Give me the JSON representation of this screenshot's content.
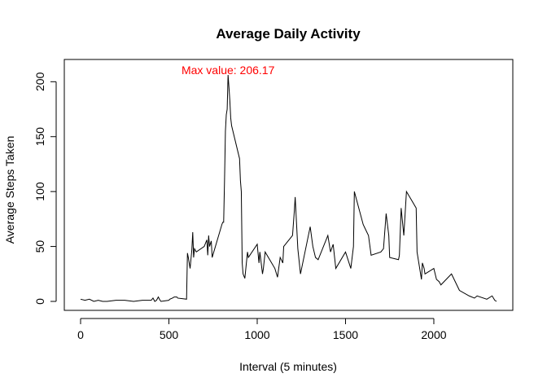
{
  "chart_data": {
    "type": "line",
    "title": "Average Daily Activity",
    "xlabel": "Interval (5 minutes)",
    "ylabel": "Average Steps Taken",
    "xlim": [
      0,
      2355
    ],
    "ylim": [
      0,
      206.17
    ],
    "xticks": [
      0,
      500,
      1000,
      1500,
      2000
    ],
    "yticks": [
      0,
      50,
      100,
      150,
      200
    ],
    "grid": false,
    "line_color": "#000000",
    "annotation": {
      "text": "Max value:  206.17",
      "x": 835,
      "y": 206.17,
      "color": "#ff0000"
    },
    "x": [
      0,
      25,
      50,
      75,
      100,
      125,
      150,
      200,
      250,
      300,
      350,
      400,
      410,
      420,
      430,
      440,
      450,
      455,
      500,
      505,
      520,
      530,
      545,
      550,
      600,
      605,
      610,
      615,
      620,
      630,
      635,
      640,
      645,
      655,
      700,
      715,
      720,
      725,
      730,
      740,
      745,
      800,
      805,
      810,
      815,
      820,
      825,
      830,
      835,
      840,
      845,
      850,
      855,
      900,
      905,
      910,
      915,
      920,
      930,
      945,
      950,
      1000,
      1010,
      1015,
      1030,
      1035,
      1045,
      1100,
      1115,
      1130,
      1145,
      1150,
      1200,
      1210,
      1215,
      1230,
      1245,
      1300,
      1315,
      1330,
      1345,
      1400,
      1415,
      1430,
      1445,
      1500,
      1530,
      1545,
      1550,
      1600,
      1615,
      1630,
      1645,
      1700,
      1715,
      1730,
      1745,
      1750,
      1800,
      1805,
      1815,
      1830,
      1845,
      1900,
      1905,
      1930,
      1935,
      1945,
      1950,
      2000,
      2015,
      2030,
      2040,
      2100,
      2130,
      2145,
      2200,
      2230,
      2245,
      2300,
      2330,
      2345,
      2355
    ],
    "y": [
      2,
      1,
      2,
      0,
      1,
      0,
      0,
      1,
      1,
      0,
      1,
      1,
      3,
      0,
      1,
      4,
      1,
      0,
      1,
      2,
      3,
      4,
      4,
      3,
      2,
      44,
      40,
      35,
      30,
      47,
      63,
      40,
      48,
      45,
      50,
      56,
      42,
      60,
      50,
      55,
      40,
      70,
      72,
      72,
      110,
      155,
      170,
      175,
      206.17,
      195,
      183,
      167,
      160,
      130,
      110,
      100,
      35,
      25,
      21,
      45,
      40,
      52,
      35,
      45,
      25,
      30,
      45,
      30,
      22,
      40,
      35,
      50,
      60,
      82,
      95,
      48,
      25,
      68,
      50,
      40,
      38,
      60,
      45,
      52,
      30,
      45,
      30,
      50,
      100,
      70,
      65,
      60,
      42,
      45,
      48,
      80,
      60,
      40,
      38,
      42,
      85,
      60,
      100,
      85,
      45,
      20,
      35,
      30,
      25,
      30,
      20,
      18,
      15,
      25,
      15,
      10,
      5,
      3,
      5,
      2,
      5,
      1,
      0
    ]
  }
}
